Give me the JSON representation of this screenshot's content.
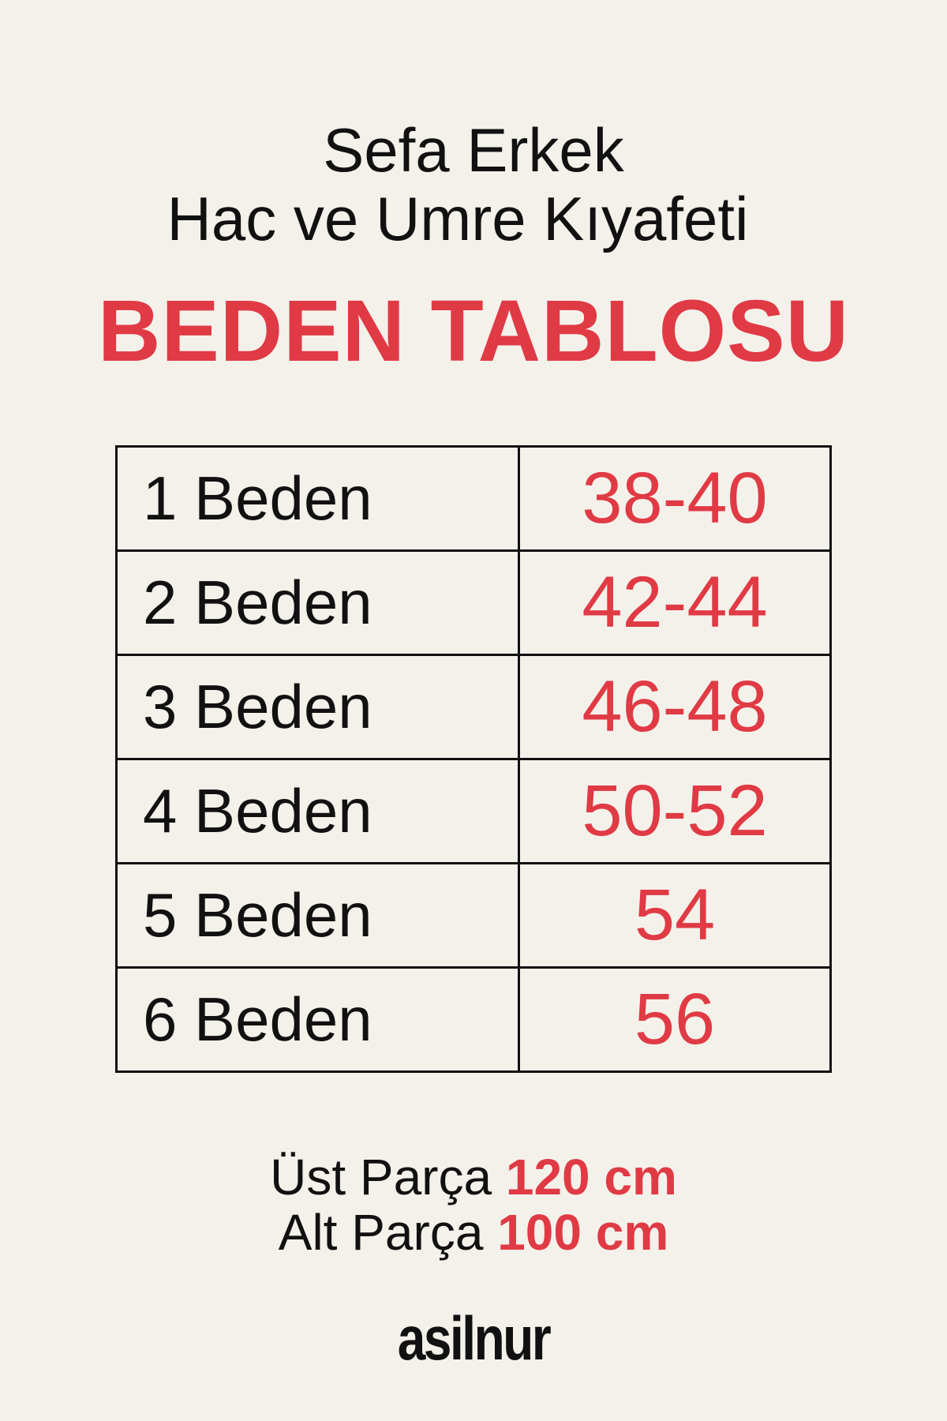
{
  "title": {
    "line1": "Sefa Erkek",
    "line2": "Hac ve Umre Kıyafeti",
    "heading": "BEDEN TABLOSU"
  },
  "size_table": {
    "rows": [
      {
        "size": "1 Beden",
        "range": "38-40"
      },
      {
        "size": "2 Beden",
        "range": "42-44"
      },
      {
        "size": "3 Beden",
        "range": "46-48"
      },
      {
        "size": "4 Beden",
        "range": "50-52"
      },
      {
        "size": "5 Beden",
        "range": "54"
      },
      {
        "size": "6 Beden",
        "range": "56"
      }
    ]
  },
  "measurements": {
    "top_label": "Üst Parça",
    "top_value": "120 cm",
    "bottom_label": "Alt Parça",
    "bottom_value": "100 cm"
  },
  "brand": {
    "logo_text": "asilnur"
  },
  "colors": {
    "accent": "#e03a45",
    "background": "#f4f1eb",
    "text": "#111111"
  }
}
